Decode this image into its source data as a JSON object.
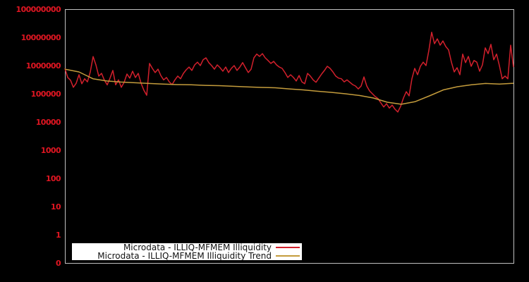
{
  "chart": {
    "background_color": "#000000",
    "border_color": "#c0c0c0",
    "axis_label_color": "#e01622",
    "legend_background": "#ffffff",
    "legend_text_color": "#111111"
  },
  "chart_data": {
    "type": "line",
    "title": "",
    "xlabel": "",
    "ylabel": "",
    "x_tick_labels": [],
    "y_scale": "log",
    "y_tick_labels": [
      "100000000",
      "10000000",
      "1000000",
      "100000",
      "10000",
      "1000",
      "100",
      "10",
      "1",
      "0"
    ],
    "ylim": [
      1,
      100000000
    ],
    "grid": false,
    "legend_position": "bottom-left",
    "series": [
      {
        "name": "Microdata - ILLIQ-MFMEM Illiquidity",
        "color": "#d2202c",
        "values": [
          840000.0,
          400000.0,
          320000.0,
          180000.0,
          250000.0,
          500000.0,
          240000.0,
          360000.0,
          280000.0,
          630000.0,
          2200000.0,
          1120000.0,
          450000.0,
          560000.0,
          320000.0,
          220000.0,
          380000.0,
          710000.0,
          220000.0,
          330000.0,
          180000.0,
          270000.0,
          530000.0,
          380000.0,
          670000.0,
          400000.0,
          560000.0,
          250000.0,
          141000.0,
          94000.0,
          1260000.0,
          840000.0,
          600000.0,
          790000.0,
          470000.0,
          330000.0,
          400000.0,
          280000.0,
          224000.0,
          330000.0,
          450000.0,
          360000.0,
          560000.0,
          750000.0,
          940000.0,
          710000.0,
          1120000.0,
          1400000.0,
          1060000.0,
          1700000.0,
          2000000.0,
          1350000.0,
          1060000.0,
          790000.0,
          1120000.0,
          890000.0,
          670000.0,
          940000.0,
          600000.0,
          840000.0,
          1060000.0,
          710000.0,
          940000.0,
          1350000.0,
          890000.0,
          600000.0,
          790000.0,
          2000000.0,
          2700000.0,
          2240000.0,
          2800000.0,
          2000000.0,
          1600000.0,
          1260000.0,
          1500000.0,
          1120000.0,
          940000.0,
          840000.0,
          600000.0,
          400000.0,
          500000.0,
          400000.0,
          300000.0,
          470000.0,
          280000.0,
          240000.0,
          560000.0,
          450000.0,
          330000.0,
          270000.0,
          380000.0,
          530000.0,
          710000.0,
          1000000.0,
          840000.0,
          630000.0,
          450000.0,
          380000.0,
          360000.0,
          280000.0,
          330000.0,
          270000.0,
          224000.0,
          200000.0,
          158000.0,
          200000.0,
          420000.0,
          200000.0,
          133000.0,
          106000.0,
          84000.0,
          71000.0,
          50000.0,
          36000.0,
          47000.0,
          33000.0,
          42000.0,
          30000.0,
          24000.0,
          38000.0,
          75000.0,
          126000.0,
          89000.0,
          360000.0,
          840000.0,
          500000.0,
          1000000.0,
          1400000.0,
          1060000.0,
          3600000.0,
          16000000.0,
          6300000.0,
          9400000.0,
          5600000.0,
          7900000.0,
          5000000.0,
          3800000.0,
          1400000.0,
          630000.0,
          890000.0,
          500000.0,
          2700000.0,
          1350000.0,
          2240000.0,
          1000000.0,
          1600000.0,
          1400000.0,
          670000.0,
          1120000.0,
          4500000.0,
          2800000.0,
          6000000.0,
          1700000.0,
          2700000.0,
          1060000.0,
          360000.0,
          450000.0,
          360000.0,
          5600000.0,
          940000.0
        ]
      },
      {
        "name": "Microdata - ILLIQ-MFMEM Illiquidity Trend",
        "color": "#c49c3c",
        "values": [
          790000.0,
          630000.0,
          360000.0,
          300000.0,
          275000.0,
          260000.0,
          245000.0,
          235000.0,
          224000.0,
          220000.0,
          210000.0,
          205000.0,
          195000.0,
          185000.0,
          178000.0,
          173000.0,
          158000.0,
          145000.0,
          130000.0,
          119000.0,
          106000.0,
          92000.0,
          75000.0,
          53000.0,
          45000.0,
          56000.0,
          89000.0,
          145000.0,
          188000.0,
          220000.0,
          245000.0,
          235000.0,
          250000.0
        ]
      }
    ]
  }
}
